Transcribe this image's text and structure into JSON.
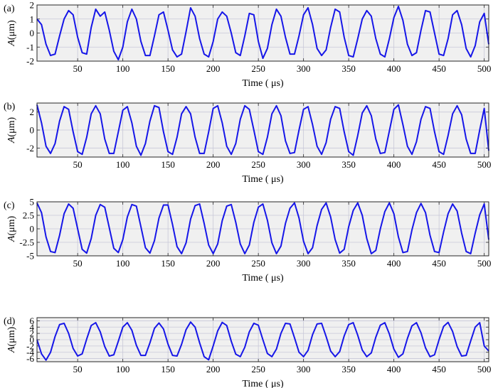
{
  "colors": {
    "line": "#1616e8",
    "plot_bg": "#f0f0f0",
    "grid": "#c8c8d8",
    "axes": "#262626"
  },
  "chart_data": [
    {
      "type": "line",
      "panel_label": "(a)",
      "ylabel_italic": "A",
      "ylabel_rest": "(μm)",
      "xlabel": "Time ( μs)",
      "xlim": [
        5,
        505
      ],
      "ylim": [
        -2,
        2
      ],
      "xticks": [
        50,
        100,
        150,
        200,
        250,
        300,
        350,
        400,
        450,
        500
      ],
      "xtick_labels": [
        "50",
        "100",
        "150",
        "200",
        "250",
        "300",
        "350",
        "400",
        "450",
        "500"
      ],
      "yticks": [
        -2,
        -1,
        0,
        1,
        2
      ],
      "ytick_labels": [
        "-2",
        "-1",
        "0",
        "1",
        "2"
      ],
      "grid": true,
      "series": [
        {
          "x": [
            5,
            10,
            15,
            20,
            25,
            30,
            35,
            40,
            45,
            50,
            55,
            60,
            65,
            70,
            75,
            80,
            85,
            90,
            95,
            100,
            105,
            110,
            115,
            120,
            125,
            130,
            135,
            140,
            145,
            150,
            155,
            160,
            165,
            170,
            175,
            180,
            185,
            190,
            195,
            200,
            205,
            210,
            215,
            220,
            225,
            230,
            235,
            240,
            245,
            250,
            255,
            260,
            265,
            270,
            275,
            280,
            285,
            290,
            295,
            300,
            305,
            310,
            315,
            320,
            325,
            330,
            335,
            340,
            345,
            350,
            355,
            360,
            365,
            370,
            375,
            380,
            385,
            390,
            395,
            400,
            405,
            410,
            415,
            420,
            425,
            430,
            435,
            440,
            445,
            450,
            455,
            460,
            465,
            470,
            475,
            480,
            485,
            490,
            495,
            500,
            505
          ],
          "values": [
            1.0,
            0.6,
            -0.8,
            -1.6,
            -1.5,
            -0.2,
            1.0,
            1.6,
            1.3,
            -0.3,
            -1.4,
            -1.5,
            0.4,
            1.7,
            1.2,
            1.5,
            0.2,
            -1.3,
            -1.9,
            -1.0,
            0.8,
            1.7,
            1.0,
            -0.6,
            -1.6,
            -1.6,
            -0.2,
            1.3,
            1.5,
            0.2,
            -1.2,
            -1.7,
            -1.5,
            0.1,
            1.8,
            1.2,
            -0.4,
            -1.5,
            -1.7,
            -0.6,
            1.0,
            1.5,
            1.2,
            0.0,
            -1.4,
            -1.6,
            -0.2,
            1.4,
            1.3,
            -0.6,
            -1.8,
            -1.1,
            0.6,
            1.7,
            1.2,
            -0.3,
            -1.5,
            -1.5,
            -0.2,
            1.3,
            1.8,
            0.6,
            -1.1,
            -1.6,
            -1.2,
            0.4,
            1.7,
            1.5,
            -0.3,
            -1.6,
            -1.7,
            -0.4,
            1.0,
            1.6,
            1.2,
            -0.4,
            -1.5,
            -1.7,
            -0.4,
            1.1,
            1.9,
            0.9,
            -0.8,
            -1.6,
            -1.4,
            0.2,
            1.6,
            1.5,
            0.0,
            -1.5,
            -1.6,
            -0.4,
            1.3,
            1.6,
            0.6,
            -1.1,
            -1.7,
            -0.9,
            0.8,
            1.4,
            -0.8
          ]
        }
      ]
    },
    {
      "type": "line",
      "panel_label": "(b)",
      "ylabel_italic": "A",
      "ylabel_rest": "(μm)",
      "xlabel": "Time ( μs)",
      "xlim": [
        5,
        505
      ],
      "ylim": [
        -3,
        3
      ],
      "xticks": [
        50,
        100,
        150,
        200,
        250,
        300,
        350,
        400,
        450,
        500
      ],
      "xtick_labels": [
        "50",
        "100",
        "150",
        "200",
        "250",
        "300",
        "350",
        "400",
        "450",
        "500"
      ],
      "yticks": [
        -2,
        0,
        2
      ],
      "ytick_labels": [
        "-2",
        "0",
        "2"
      ],
      "grid": true,
      "series": [
        {
          "x": [
            5,
            10,
            15,
            20,
            25,
            30,
            35,
            40,
            45,
            50,
            55,
            60,
            65,
            70,
            75,
            80,
            85,
            90,
            95,
            100,
            105,
            110,
            115,
            120,
            125,
            130,
            135,
            140,
            145,
            150,
            155,
            160,
            165,
            170,
            175,
            180,
            185,
            190,
            195,
            200,
            205,
            210,
            215,
            220,
            225,
            230,
            235,
            240,
            245,
            250,
            255,
            260,
            265,
            270,
            275,
            280,
            285,
            290,
            295,
            300,
            305,
            310,
            315,
            320,
            325,
            330,
            335,
            340,
            345,
            350,
            355,
            360,
            365,
            370,
            375,
            380,
            385,
            390,
            395,
            400,
            405,
            410,
            415,
            420,
            425,
            430,
            435,
            440,
            445,
            450,
            455,
            460,
            465,
            470,
            475,
            480,
            485,
            490,
            495,
            500,
            505
          ],
          "values": [
            2.8,
            0.8,
            -1.8,
            -2.6,
            -1.5,
            1.0,
            2.6,
            2.3,
            -0.2,
            -2.4,
            -2.7,
            -0.8,
            1.8,
            2.7,
            1.8,
            -1.0,
            -2.6,
            -2.6,
            -0.2,
            2.2,
            2.6,
            0.8,
            -1.8,
            -2.8,
            -1.5,
            1.0,
            2.7,
            2.5,
            -0.2,
            -2.4,
            -2.7,
            -0.8,
            1.8,
            2.6,
            1.8,
            -0.8,
            -2.6,
            -2.6,
            -0.2,
            2.4,
            2.7,
            0.8,
            -1.8,
            -2.7,
            -1.5,
            1.2,
            2.7,
            2.3,
            0.0,
            -2.4,
            -2.7,
            -0.8,
            1.8,
            2.7,
            1.6,
            -1.2,
            -2.6,
            -2.5,
            0.0,
            2.3,
            2.6,
            0.6,
            -1.8,
            -2.7,
            -1.4,
            1.2,
            2.6,
            2.4,
            -0.2,
            -2.4,
            -2.8,
            -0.6,
            1.9,
            2.7,
            1.6,
            -1.0,
            -2.6,
            -2.5,
            -0.1,
            2.3,
            2.8,
            0.6,
            -1.8,
            -2.7,
            -1.3,
            1.2,
            2.6,
            2.4,
            -0.2,
            -2.4,
            -2.7,
            -0.6,
            1.8,
            2.7,
            1.7,
            -1.0,
            -2.6,
            -2.6,
            0.0,
            2.4,
            -2.3
          ]
        }
      ]
    },
    {
      "type": "line",
      "panel_label": "(c)",
      "ylabel_italic": "A",
      "ylabel_rest": "(μm)",
      "xlabel": "Time ( μs)",
      "xlim": [
        5,
        505
      ],
      "ylim": [
        -5,
        5
      ],
      "xticks": [
        50,
        100,
        150,
        200,
        250,
        300,
        350,
        400,
        450,
        500
      ],
      "xtick_labels": [
        "50",
        "100",
        "150",
        "200",
        "250",
        "300",
        "350",
        "400",
        "450",
        "500"
      ],
      "yticks": [
        -5,
        -2.5,
        0,
        2.5,
        5
      ],
      "ytick_labels": [
        "-5",
        "-2.5",
        "0",
        "2.5",
        "5"
      ],
      "grid": true,
      "series": [
        {
          "x": [
            5,
            10,
            15,
            20,
            25,
            30,
            35,
            40,
            45,
            50,
            55,
            60,
            65,
            70,
            75,
            80,
            85,
            90,
            95,
            100,
            105,
            110,
            115,
            120,
            125,
            130,
            135,
            140,
            145,
            150,
            155,
            160,
            165,
            170,
            175,
            180,
            185,
            190,
            195,
            200,
            205,
            210,
            215,
            220,
            225,
            230,
            235,
            240,
            245,
            250,
            255,
            260,
            265,
            270,
            275,
            280,
            285,
            290,
            295,
            300,
            305,
            310,
            315,
            320,
            325,
            330,
            335,
            340,
            345,
            350,
            355,
            360,
            365,
            370,
            375,
            380,
            385,
            390,
            395,
            400,
            405,
            410,
            415,
            420,
            425,
            430,
            435,
            440,
            445,
            450,
            455,
            460,
            465,
            470,
            475,
            480,
            485,
            490,
            495,
            500,
            505
          ],
          "values": [
            4.8,
            3.0,
            -1.5,
            -4.2,
            -4.4,
            -1.2,
            2.8,
            4.6,
            3.8,
            0.0,
            -3.8,
            -4.5,
            -1.8,
            2.5,
            4.5,
            4.0,
            0.2,
            -3.6,
            -4.4,
            -2.0,
            2.2,
            4.5,
            4.2,
            0.4,
            -3.5,
            -4.5,
            -2.2,
            2.0,
            4.4,
            4.4,
            0.8,
            -3.3,
            -4.6,
            -2.6,
            1.8,
            4.3,
            4.6,
            1.0,
            -3.0,
            -4.6,
            -2.8,
            1.5,
            4.2,
            4.5,
            1.2,
            -2.8,
            -4.6,
            -3.0,
            1.2,
            4.0,
            4.6,
            1.6,
            -2.6,
            -4.6,
            -3.2,
            1.0,
            3.8,
            4.8,
            2.0,
            -2.3,
            -4.6,
            -3.5,
            0.6,
            3.6,
            4.8,
            2.2,
            -2.0,
            -4.5,
            -3.8,
            0.4,
            3.4,
            4.8,
            2.5,
            -1.8,
            -4.6,
            -4.0,
            0.0,
            3.2,
            4.8,
            2.8,
            -1.5,
            -4.4,
            -4.2,
            -0.2,
            3.0,
            4.7,
            3.0,
            -1.2,
            -4.2,
            -4.4,
            -0.6,
            2.8,
            4.6,
            3.3,
            -0.8,
            -4.2,
            -4.6,
            -0.8,
            2.6,
            4.6,
            -2.0
          ]
        }
      ]
    },
    {
      "type": "line",
      "panel_label": "(d)",
      "ylabel_italic": "A",
      "ylabel_rest": "(μm)",
      "xlabel": "Time ( μs)",
      "xlim": [
        5,
        505
      ],
      "ylim": [
        -7,
        7
      ],
      "xticks": [
        50,
        100,
        150,
        200,
        250,
        300,
        350,
        400,
        450,
        500
      ],
      "xtick_labels": [
        "50",
        "100",
        "150",
        "200",
        "250",
        "300",
        "350",
        "400",
        "450",
        "500"
      ],
      "yticks": [
        -6,
        -4,
        -2,
        0,
        2,
        4,
        6
      ],
      "ytick_labels": [
        "-6",
        "-4",
        "-2",
        "0",
        "2",
        "4",
        "6"
      ],
      "grid": true,
      "series": [
        {
          "x": [
            5,
            10,
            15,
            20,
            25,
            30,
            35,
            40,
            45,
            50,
            55,
            60,
            65,
            70,
            75,
            80,
            85,
            90,
            95,
            100,
            105,
            110,
            115,
            120,
            125,
            130,
            135,
            140,
            145,
            150,
            155,
            160,
            165,
            170,
            175,
            180,
            185,
            190,
            195,
            200,
            205,
            210,
            215,
            220,
            225,
            230,
            235,
            240,
            245,
            250,
            255,
            260,
            265,
            270,
            275,
            280,
            285,
            290,
            295,
            300,
            305,
            310,
            315,
            320,
            325,
            330,
            335,
            340,
            345,
            350,
            355,
            360,
            365,
            370,
            375,
            380,
            385,
            390,
            395,
            400,
            405,
            410,
            415,
            420,
            425,
            430,
            435,
            440,
            445,
            450,
            455,
            460,
            465,
            470,
            475,
            480,
            485,
            490,
            495,
            500,
            505
          ],
          "values": [
            0.0,
            -4.5,
            -6.5,
            -4.0,
            1.0,
            4.8,
            5.2,
            2.0,
            -2.8,
            -5.2,
            -4.5,
            0.2,
            4.5,
            5.4,
            2.5,
            -2.2,
            -5.2,
            -4.8,
            -0.5,
            4.0,
            5.4,
            3.0,
            -1.8,
            -5.0,
            -5.0,
            -1.0,
            3.6,
            5.3,
            3.4,
            -1.4,
            -5.0,
            -5.2,
            -1.5,
            3.2,
            5.6,
            4.0,
            -1.0,
            -5.4,
            -6.4,
            -2.0,
            2.8,
            5.5,
            4.5,
            -0.5,
            -4.6,
            -5.4,
            -2.4,
            2.5,
            5.2,
            4.6,
            0.0,
            -4.4,
            -5.4,
            -3.0,
            2.0,
            5.2,
            5.0,
            0.6,
            -4.0,
            -5.4,
            -3.4,
            1.6,
            5.0,
            5.2,
            1.0,
            -3.6,
            -5.4,
            -3.8,
            1.2,
            4.8,
            5.4,
            1.4,
            -3.3,
            -5.4,
            -4.2,
            0.8,
            4.6,
            5.4,
            1.8,
            -3.0,
            -5.6,
            -4.5,
            0.4,
            4.4,
            5.4,
            2.2,
            -2.6,
            -5.4,
            -4.8,
            0.0,
            4.2,
            5.5,
            2.6,
            -2.2,
            -5.2,
            -5.0,
            -0.4,
            4.0,
            5.4,
            -2.0,
            -3.6
          ]
        }
      ]
    }
  ]
}
